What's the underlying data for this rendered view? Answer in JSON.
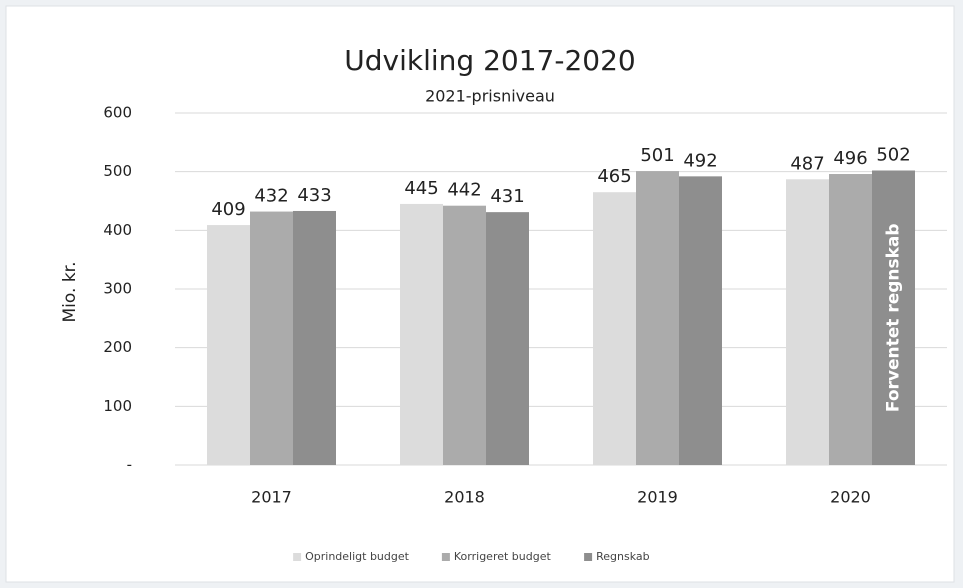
{
  "chart_data": {
    "type": "bar",
    "title": "Udvikling 2017-2020",
    "subtitle": "2021-prisniveau",
    "y_label": "Mio. kr.",
    "categories": [
      "2017",
      "2018",
      "2019",
      "2020"
    ],
    "series": [
      {
        "name": "Oprindeligt budget",
        "color": "#dcdcdc",
        "values": [
          409,
          445,
          465,
          487
        ]
      },
      {
        "name": "Korrigeret budget",
        "color": "#ababab",
        "values": [
          432,
          442,
          501,
          496
        ]
      },
      {
        "name": "Regnskab",
        "color": "#8e8e8e",
        "values": [
          433,
          431,
          492,
          502
        ]
      }
    ],
    "annotation": "Forventet regnskab",
    "ylim": [
      0,
      600
    ],
    "yticks": [
      {
        "value": 0,
        "label": "-"
      },
      100,
      200,
      300,
      400,
      500,
      600
    ],
    "grid": true,
    "legend": "bottom"
  }
}
